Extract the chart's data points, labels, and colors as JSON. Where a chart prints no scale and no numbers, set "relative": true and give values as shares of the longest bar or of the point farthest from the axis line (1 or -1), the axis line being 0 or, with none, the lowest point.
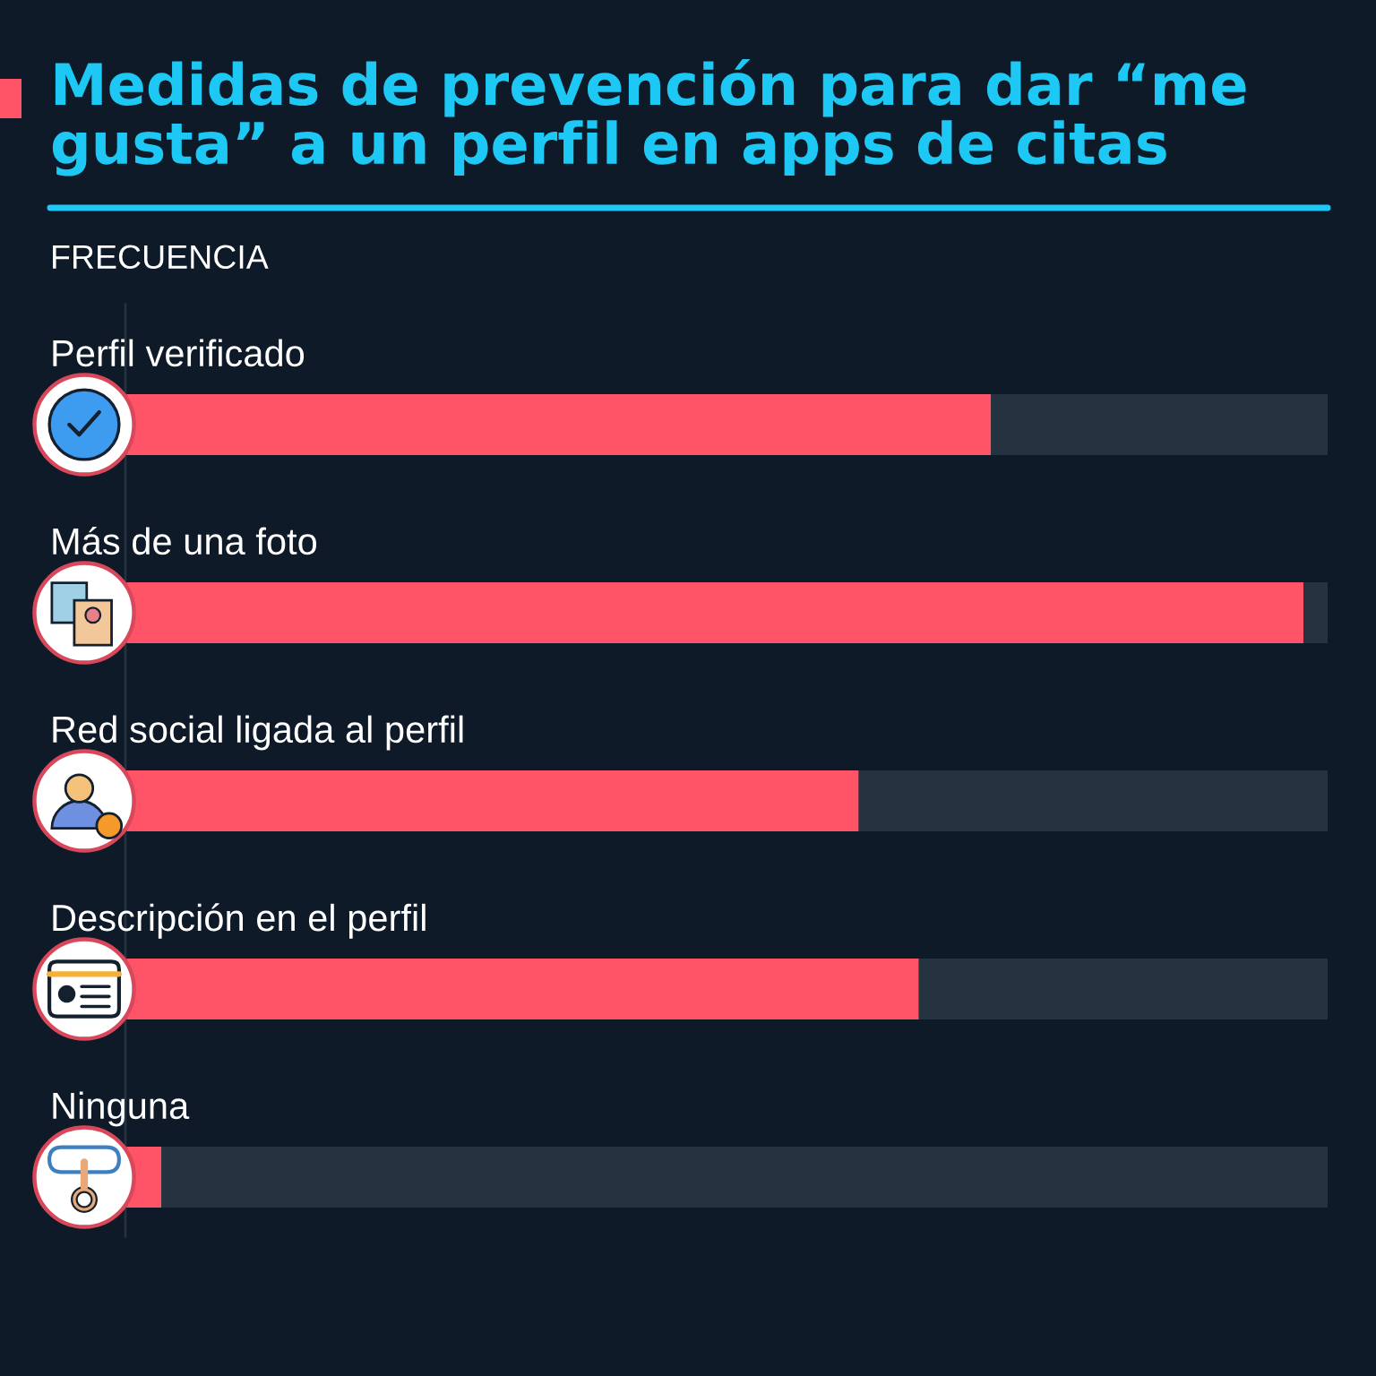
{
  "chart_data": {
    "type": "bar",
    "orientation": "horizontal",
    "relative": true,
    "stacked": true,
    "title": "Medidas de prevención para dar “me gusta” a un perfil en apps de citas",
    "subtitle": "FRECUENCIA",
    "categories": [
      "Perfil verificado",
      "Más de una foto",
      "Red social ligada al perfil",
      "Descripción en el perfil",
      "Ninguna"
    ],
    "series": [
      {
        "color": "#ff5468",
        "values": [
          0.72,
          0.98,
          0.61,
          0.66,
          0.03
        ]
      },
      {
        "color": "#253240",
        "values": [
          0.28,
          0.02,
          0.39,
          0.34,
          0.97
        ]
      }
    ]
  }
}
